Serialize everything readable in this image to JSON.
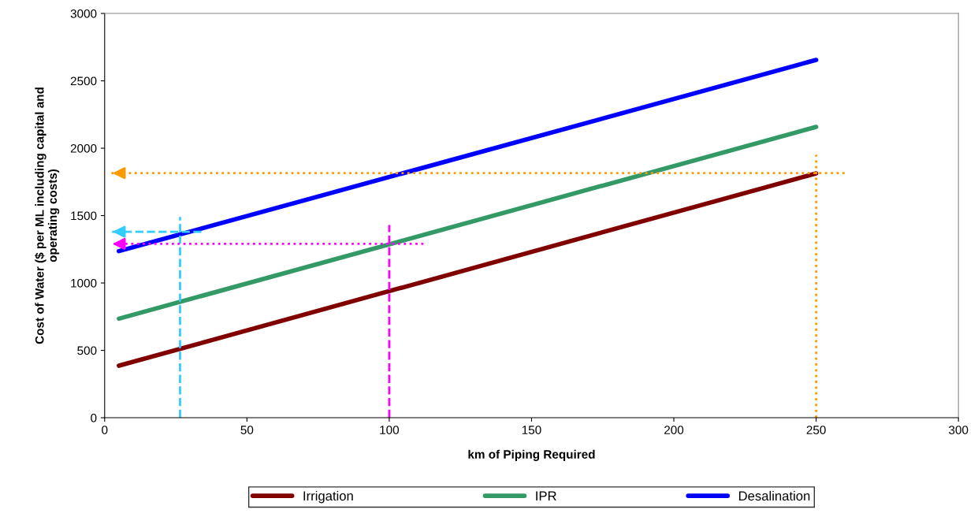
{
  "chart_data": {
    "type": "line",
    "xlabel": "km of Piping Required",
    "ylabel": "Cost of Water ($ per ML including capital and\noperating costs)",
    "xlim": [
      0,
      300
    ],
    "xticks": [
      0,
      50,
      100,
      150,
      200,
      250,
      300
    ],
    "ylim": [
      0,
      3000
    ],
    "yticks": [
      0,
      500,
      1000,
      1500,
      2000,
      2500,
      3000
    ],
    "grid": false,
    "legend": "bottom",
    "marker": "none",
    "series": [
      {
        "name": "Irrigation",
        "color": "#800000",
        "x": [
          5,
          250
        ],
        "values": [
          386,
          1813
        ]
      },
      {
        "name": "IPR",
        "color": "#339966",
        "x": [
          5,
          250
        ],
        "values": [
          735,
          2158
        ]
      },
      {
        "name": "Desalination",
        "color": "#0000ff",
        "x": [
          5,
          250
        ],
        "values": [
          1236,
          2655
        ]
      },
      {
        "color": "#ff9900",
        "line_style": "dotted",
        "x": [
          260,
          2
        ],
        "values": [
          1815,
          1815
        ]
      },
      {
        "color": "#ff9900",
        "line_style": "dotted",
        "x": [
          250,
          250
        ],
        "values": [
          0,
          1950
        ]
      },
      {
        "color": "#33ccff",
        "line_style": "dashed",
        "x": [
          34,
          2
        ],
        "values": [
          1380,
          1380
        ]
      },
      {
        "color": "#33ccff",
        "line_style": "dashed",
        "x": [
          26.5,
          26.5
        ],
        "values": [
          0,
          1490
        ]
      },
      {
        "color": "#ff00ff",
        "line_style": "dotted",
        "x": [
          112,
          2
        ],
        "values": [
          1290,
          1290
        ]
      },
      {
        "color": "#ff00ff",
        "line_style": "dashed",
        "x": [
          100,
          100
        ],
        "values": [
          0,
          1430
        ]
      }
    ]
  }
}
